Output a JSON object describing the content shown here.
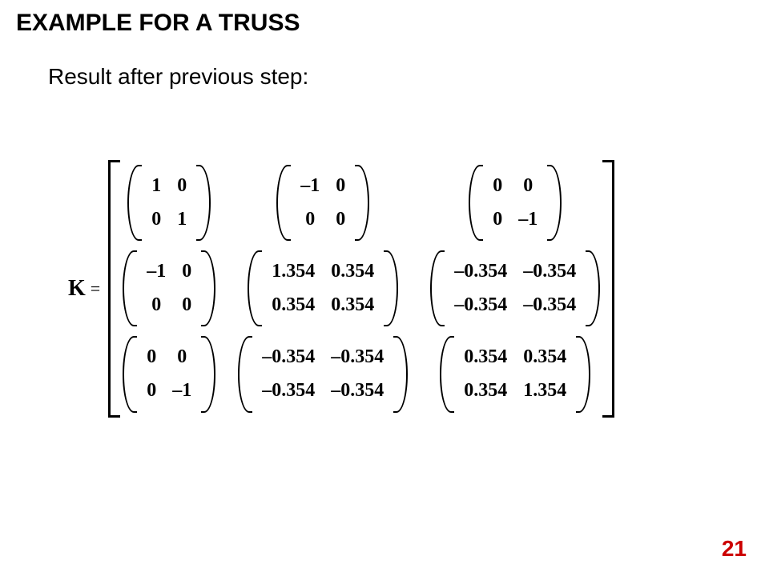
{
  "title": "EXAMPLE FOR A TRUSS",
  "subtitle": "Result after previous step:",
  "page_number": "21",
  "page_number_color": "#cc0000",
  "k_label": "K",
  "equals": "=",
  "matrix": {
    "blocks": [
      [
        [
          [
            "1",
            "0"
          ],
          [
            "0",
            "1"
          ]
        ],
        [
          [
            "-1",
            "0"
          ],
          [
            "0",
            "0"
          ]
        ],
        [
          [
            "0",
            "0"
          ],
          [
            "0",
            "-1"
          ]
        ]
      ],
      [
        [
          [
            "-1",
            "0"
          ],
          [
            "0",
            "0"
          ]
        ],
        [
          [
            "1.354",
            "0.354"
          ],
          [
            "0.354",
            "0.354"
          ]
        ],
        [
          [
            "-0.354",
            "-0.354"
          ],
          [
            "-0.354",
            "-0.354"
          ]
        ]
      ],
      [
        [
          [
            "0",
            "0"
          ],
          [
            "0",
            "-1"
          ]
        ],
        [
          [
            "-0.354",
            "-0.354"
          ],
          [
            "-0.354",
            "-0.354"
          ]
        ],
        [
          [
            "0.354",
            "0.354"
          ],
          [
            "0.354",
            "1.354"
          ]
        ]
      ]
    ]
  }
}
